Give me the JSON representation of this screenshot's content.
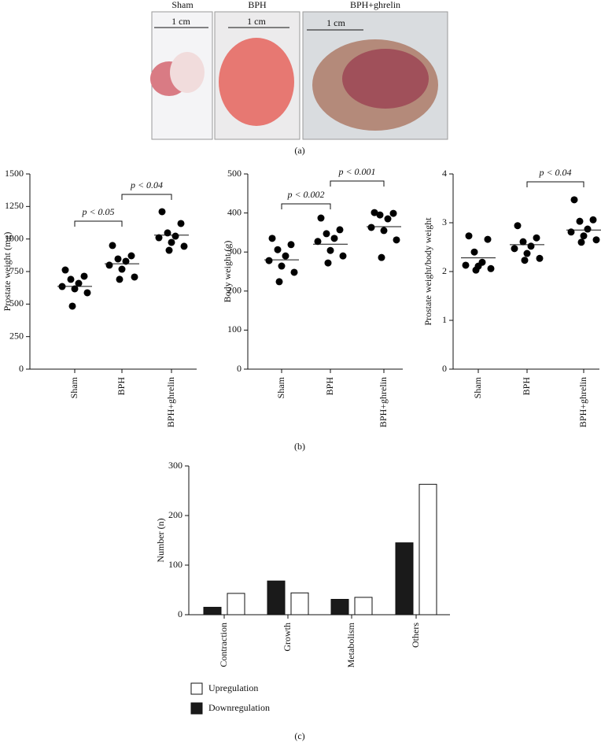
{
  "panel_a": {
    "groups": [
      "Sham",
      "BPH",
      "BPH+ghrelin"
    ],
    "scale_bar": [
      "1 cm",
      "1 cm",
      "1 cm"
    ]
  },
  "captions": [
    "(a)",
    "(b)",
    "(c)"
  ],
  "chart_data": [
    {
      "type": "strip",
      "y_label": "Prostate weight (mg)",
      "categories": [
        "Sham",
        "BPH",
        "BPH+ghrelin"
      ],
      "values": [
        [
          762,
          714,
          690,
          659,
          635,
          617,
          587,
          484
        ],
        [
          950,
          871,
          847,
          829,
          799,
          768,
          708,
          690
        ],
        [
          1210,
          1119,
          1047,
          1022,
          1010,
          974,
          944,
          913
        ]
      ],
      "means": [
        636,
        810,
        1030
      ],
      "color": "#000000",
      "ylim": [
        0,
        1500
      ],
      "yticks": [
        0,
        250,
        500,
        750,
        1000,
        1250,
        1500
      ],
      "annotations": [
        "p < 0.05",
        "p < 0.04"
      ]
    },
    {
      "type": "strip",
      "y_label": "Body weight (g)",
      "categories": [
        "Sham",
        "BPH",
        "BPH+ghrelin"
      ],
      "values": [
        [
          335,
          319,
          306,
          290,
          278,
          264,
          248,
          224
        ],
        [
          387,
          357,
          347,
          335,
          327,
          304,
          290,
          272
        ],
        [
          401,
          399,
          395,
          385,
          363,
          355,
          331,
          286
        ]
      ],
      "means": [
        280,
        320,
        365
      ],
      "color": "#000000",
      "ylim": [
        0,
        500
      ],
      "yticks": [
        0,
        100,
        200,
        300,
        400,
        500
      ],
      "annotations": [
        "p < 0.002",
        "p < 0.001"
      ]
    },
    {
      "type": "strip",
      "y_label": "Prostate weight/body weight",
      "categories": [
        "Sham",
        "BPH",
        "BPH+ghrelin"
      ],
      "values": [
        [
          2.73,
          2.66,
          2.4,
          2.19,
          2.13,
          2.11,
          2.06,
          2.03
        ],
        [
          2.94,
          2.69,
          2.61,
          2.52,
          2.47,
          2.37,
          2.27,
          2.23
        ],
        [
          3.47,
          3.06,
          3.03,
          2.87,
          2.81,
          2.73,
          2.65,
          2.6
        ]
      ],
      "means": [
        2.28,
        2.55,
        2.85
      ],
      "color": "#000000",
      "ylim": [
        0,
        4
      ],
      "yticks": [
        0,
        1,
        2,
        3,
        4
      ],
      "annotations": [
        "p < 0.04"
      ]
    },
    {
      "type": "bar",
      "y_label": "Number (n)",
      "categories": [
        "Contraction",
        "Growth",
        "Metabolism",
        "Others"
      ],
      "series": [
        {
          "name": "Downregulation",
          "color": "#1a1a1a",
          "values": [
            15,
            68,
            31,
            145
          ]
        },
        {
          "name": "Upregulation",
          "color": "#ffffff",
          "values": [
            43,
            44,
            35,
            263
          ]
        }
      ],
      "ylim": [
        0,
        300
      ],
      "yticks": [
        0,
        100,
        200,
        300
      ]
    }
  ]
}
